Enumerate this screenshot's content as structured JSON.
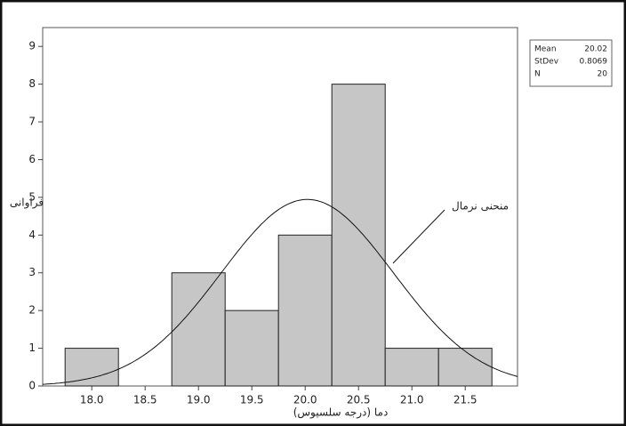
{
  "chart_data": {
    "type": "histogram",
    "bins": [
      17.75,
      18.25,
      18.75,
      19.25,
      19.75,
      20.25,
      20.75,
      21.25,
      21.75
    ],
    "values": [
      1,
      0,
      3,
      2,
      4,
      8,
      1,
      1
    ],
    "color": "#c6c6c6",
    "xlim": [
      17.54,
      21.99
    ],
    "ylim": [
      0,
      9.5
    ],
    "xticks": [
      {
        "value": 18,
        "label": "18.0"
      },
      18.5,
      {
        "value": 19,
        "label": "19.0"
      },
      19.5,
      {
        "value": 20,
        "label": "20.0"
      },
      20.5,
      {
        "value": 21,
        "label": "21.0"
      },
      21.5
    ],
    "yticks": [
      0,
      1,
      2,
      3,
      4,
      5,
      6,
      7,
      8,
      9
    ],
    "xlabel": "دما (درجه سلسیوس)",
    "ylabel": "فراوانی",
    "annotation": "منحنی نرمال",
    "stats": {
      "labels": [
        "Mean",
        "StDev",
        "N"
      ],
      "values": [
        20.02,
        0.8069,
        20
      ]
    }
  }
}
